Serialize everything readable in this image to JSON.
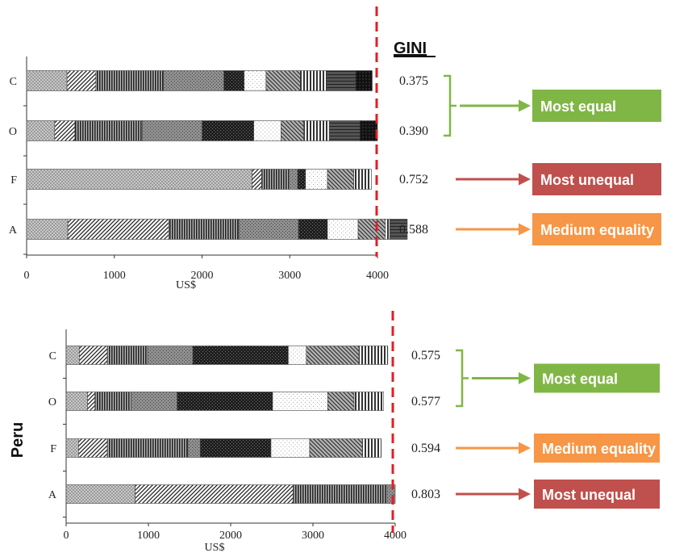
{
  "header": "GINI",
  "chart_data": [
    {
      "type": "bar",
      "orientation": "horizontal",
      "stacked": true,
      "side_label": "",
      "xlabel": "US$",
      "xlim": [
        0,
        4000
      ],
      "xticks": [
        "0",
        "1000",
        "2000",
        "3000",
        "4000"
      ],
      "threshold_line": 4000,
      "categories": [
        "C",
        "O",
        "F",
        "A"
      ],
      "segments": [
        [
          460,
          330,
          770,
          690,
          230,
          250,
          390,
          300,
          330,
          190
        ],
        [
          320,
          230,
          770,
          680,
          590,
          310,
          260,
          290,
          350,
          200
        ],
        [
          2570,
          110,
          310,
          100,
          90,
          250,
          300,
          200
        ],
        [
          470,
          1150,
          800,
          680,
          330,
          350,
          310,
          50,
          200
        ]
      ],
      "gini": [
        "0.375",
        "0.390",
        "0.752",
        "0.588"
      ],
      "groups": [
        {
          "label": "Most equal",
          "color": "#80b646",
          "rows": [
            "C",
            "O"
          ]
        },
        {
          "label": "Most unequal",
          "color": "#c0504d",
          "rows": [
            "F"
          ]
        },
        {
          "label": "Medium equality",
          "color": "#f79646",
          "rows": [
            "A"
          ]
        }
      ]
    },
    {
      "type": "bar",
      "orientation": "horizontal",
      "stacked": true,
      "side_label": "Peru",
      "xlabel": "US$",
      "xlim": [
        0,
        4000
      ],
      "xticks": [
        "0",
        "1000",
        "2000",
        "3000",
        "4000"
      ],
      "threshold_line": 4000,
      "categories": [
        "C",
        "O",
        "F",
        "A"
      ],
      "segments": [
        [
          160,
          340,
          490,
          550,
          1160,
          220,
          640,
          350
        ],
        [
          260,
          90,
          440,
          560,
          1160,
          670,
          320,
          360
        ],
        [
          150,
          350,
          980,
          150,
          860,
          470,
          640,
          230
        ],
        [
          840,
          1920,
          1140,
          100
        ]
      ],
      "gini": [
        "0.575",
        "0.577",
        "0.594",
        "0.803"
      ],
      "groups": [
        {
          "label": "Most equal",
          "color": "#80b646",
          "rows": [
            "C",
            "O"
          ]
        },
        {
          "label": "Medium equality",
          "color": "#f79646",
          "rows": [
            "F"
          ]
        },
        {
          "label": "Most unequal",
          "color": "#c0504d",
          "rows": [
            "A"
          ]
        }
      ]
    }
  ]
}
